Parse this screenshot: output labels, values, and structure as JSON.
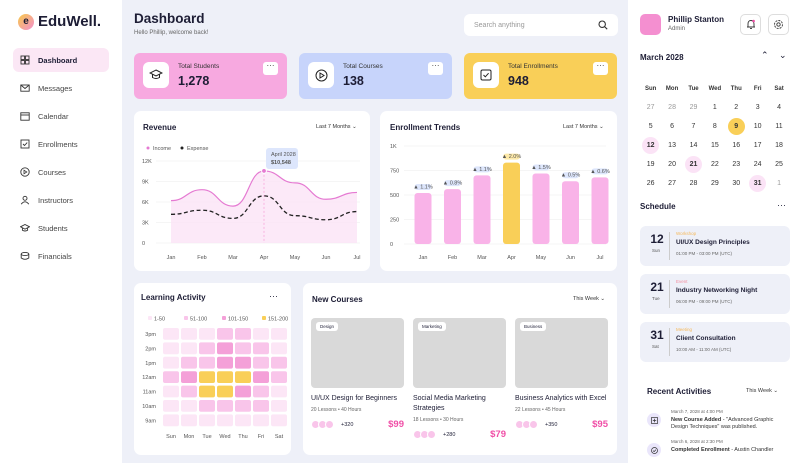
{
  "logo": {
    "name": "EduWell.",
    "mark": "e"
  },
  "nav": [
    {
      "label": "Dashboard",
      "icon": "grid-icon",
      "active": true
    },
    {
      "label": "Messages",
      "icon": "mail-icon",
      "active": false
    },
    {
      "label": "Calendar",
      "icon": "calendar-icon",
      "active": false
    },
    {
      "label": "Enrollments",
      "icon": "checkbox-icon",
      "active": false
    },
    {
      "label": "Courses",
      "icon": "play-icon",
      "active": false
    },
    {
      "label": "Instructors",
      "icon": "instructor-icon",
      "active": false
    },
    {
      "label": "Students",
      "icon": "graduation-cap-icon",
      "active": false
    },
    {
      "label": "Financials",
      "icon": "coins-icon",
      "active": false
    }
  ],
  "header": {
    "title": "Dashboard",
    "subtitle": "Hello Phillip, welcome back!",
    "search_placeholder": "Search anything"
  },
  "stats": [
    {
      "label": "Total Students",
      "value": "1,278",
      "color": "#f7a9e0",
      "icon": "graduation-cap-icon"
    },
    {
      "label": "Total Courses",
      "value": "138",
      "color": "#c7d4fb",
      "icon": "play-icon"
    },
    {
      "label": "Total Enrollments",
      "value": "948",
      "color": "#f9cf58",
      "icon": "checkbox-icon"
    }
  ],
  "more": "···",
  "revenue": {
    "title": "Revenue",
    "filter": "Last 7 Months",
    "legend_income": "Income",
    "legend_expense": "Expense",
    "tooltip_date": "April 2028",
    "tooltip_value": "$10,548"
  },
  "enrollment": {
    "title": "Enrollment Trends",
    "filter": "Last 7 Months"
  },
  "chart_data": [
    {
      "type": "line",
      "title": "Revenue",
      "categories": [
        "Jan",
        "Feb",
        "Mar",
        "Apr",
        "May",
        "Jun",
        "Jul"
      ],
      "yticks": [
        "0",
        "3K",
        "6K",
        "9K",
        "12K"
      ],
      "ylim": [
        0,
        12000
      ],
      "series": [
        {
          "name": "Income",
          "values": [
            6200,
            7800,
            5400,
            10548,
            8800,
            6400,
            7400
          ],
          "color": "#e57ad2"
        },
        {
          "name": "Expense",
          "values": [
            4200,
            4800,
            3600,
            6900,
            4000,
            3400,
            4600
          ],
          "color": "#222"
        }
      ]
    },
    {
      "type": "bar",
      "title": "Enrollment Trends",
      "categories": [
        "Jan",
        "Feb",
        "Mar",
        "Apr",
        "May",
        "Jun",
        "Jul"
      ],
      "yticks": [
        "0",
        "250",
        "500",
        "750",
        "1K"
      ],
      "ylim": [
        0,
        1000
      ],
      "values": [
        520,
        560,
        700,
        830,
        720,
        640,
        680
      ],
      "labels": [
        "▲ 1.1%",
        "▲ 0.8%",
        "▲ 1.1%",
        "▲ 2.0%",
        "▲ 1.5%",
        "▲ 0.5%",
        "▲ 0.6%"
      ],
      "highlight": 3,
      "color": "#f9b3e8",
      "highlight_color": "#f9cf58"
    },
    {
      "type": "heatmap",
      "title": "Learning Activity",
      "rows": [
        "3pm",
        "2pm",
        "1pm",
        "12am",
        "11am",
        "10am",
        "9am"
      ],
      "cols": [
        "Sun",
        "Mon",
        "Tue",
        "Wed",
        "Thu",
        "Fri",
        "Sat"
      ],
      "levels": [
        [
          1,
          1,
          1,
          2,
          2,
          1,
          1
        ],
        [
          1,
          1,
          2,
          3,
          2,
          2,
          1
        ],
        [
          1,
          2,
          2,
          3,
          3,
          2,
          2
        ],
        [
          2,
          3,
          4,
          4,
          4,
          3,
          2
        ],
        [
          1,
          2,
          4,
          4,
          3,
          2,
          1
        ],
        [
          1,
          1,
          2,
          2,
          2,
          2,
          1
        ],
        [
          1,
          1,
          1,
          1,
          1,
          1,
          1
        ]
      ],
      "legend": [
        "1-50",
        "51-100",
        "101-150",
        "151-200"
      ],
      "colors": [
        "#fce6f6",
        "#f9c5ea",
        "#f4a0d8",
        "#f9cf58"
      ]
    }
  ],
  "activity": {
    "title": "Learning Activity"
  },
  "new_courses": {
    "title": "New Courses",
    "filter": "This Week",
    "items": [
      {
        "tag": "Design",
        "name": "UI/UX Design for Beginners",
        "meta": "20 Lessons  •  40 Hours",
        "count": "+320",
        "price": "$99"
      },
      {
        "tag": "Marketing",
        "name": "Social Media Marketing Strategies",
        "meta": "18 Lessons  •  30 Hours",
        "count": "+280",
        "price": "$79"
      },
      {
        "tag": "Business",
        "name": "Business Analytics with Excel",
        "meta": "22 Lessons  •  45 Hours",
        "count": "+350",
        "price": "$95"
      }
    ]
  },
  "user": {
    "name": "Phillip Stanton",
    "role": "Admin"
  },
  "calendar": {
    "month": "March 2028",
    "days": [
      "Sun",
      "Mon",
      "Tue",
      "Wed",
      "Thu",
      "Fri",
      "Sat"
    ],
    "weeks": [
      [
        "27",
        "28",
        "29",
        "1",
        "2",
        "3",
        "4"
      ],
      [
        "5",
        "6",
        "7",
        "8",
        "9",
        "10",
        "11"
      ],
      [
        "12",
        "13",
        "14",
        "15",
        "16",
        "17",
        "18"
      ],
      [
        "19",
        "20",
        "21",
        "22",
        "23",
        "24",
        "25"
      ],
      [
        "26",
        "27",
        "28",
        "29",
        "30",
        "31",
        "1"
      ]
    ]
  },
  "schedule": {
    "title": "Schedule",
    "items": [
      {
        "day": "12",
        "dow": "Sun",
        "type": "Workshop",
        "name": "UI/UX Design Principles",
        "time": "01:00 PM - 03:00 PM (UTC)",
        "type_color": "#f5b85a"
      },
      {
        "day": "21",
        "dow": "Tue",
        "type": "Event",
        "name": "Industry Networking Night",
        "time": "06:00 PM - 09:00 PM (UTC)",
        "type_color": "#f48fa0"
      },
      {
        "day": "31",
        "dow": "Sat",
        "type": "Meeting",
        "name": "Client Consultation",
        "time": "10:00 AM - 11:00 AM (UTC)",
        "type_color": "#f5b85a"
      }
    ]
  },
  "recent": {
    "title": "Recent Activities",
    "filter": "This Week",
    "items": [
      {
        "time": "March 7, 2028 at 4:00 PM",
        "bold": "New Course Added",
        "text": " - \"Advanced Graphic Design Techniques\" was published."
      },
      {
        "time": "March 6, 2028 at 2:30 PM",
        "bold": "Completed Enrollment",
        "text": " - Austin Chandler"
      }
    ]
  }
}
